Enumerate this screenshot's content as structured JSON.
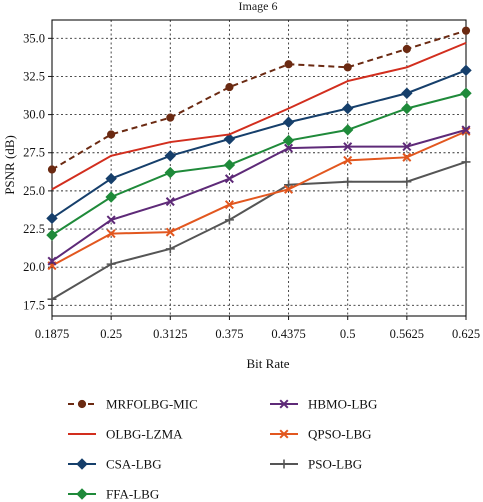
{
  "chart_data": {
    "type": "line",
    "title": "Image 6",
    "xlabel": "Bit Rate",
    "ylabel": "PSNR (dB)",
    "categories": [
      "0.1875",
      "0.25",
      "0.3125",
      "0.375",
      "0.4375",
      "0.5",
      "0.5625",
      "0.625"
    ],
    "ylim": [
      16.8,
      36.2
    ],
    "yticks": [
      "17.5",
      "20.0",
      "22.5",
      "25.0",
      "27.5",
      "30.0",
      "32.5",
      "35.0"
    ],
    "grid": true,
    "legend_position": "bottom",
    "series": [
      {
        "name": "MRFOLBG-MIC",
        "color": "#6b2a12",
        "dashed": true,
        "marker": "circle",
        "values": [
          26.4,
          28.7,
          29.8,
          31.8,
          33.3,
          33.1,
          34.3,
          35.5
        ]
      },
      {
        "name": "OLBG-LZMA",
        "color": "#d22e1e",
        "dashed": false,
        "marker": "none",
        "values": [
          25.1,
          27.3,
          28.2,
          28.7,
          30.4,
          32.2,
          33.1,
          34.7
        ]
      },
      {
        "name": "CSA-LBG",
        "color": "#163f6b",
        "dashed": false,
        "marker": "diamond",
        "values": [
          23.2,
          25.8,
          27.3,
          28.4,
          29.5,
          30.4,
          31.4,
          32.9
        ]
      },
      {
        "name": "FFA-LBG",
        "color": "#1f8a3a",
        "dashed": false,
        "marker": "diamond",
        "values": [
          22.1,
          24.6,
          26.2,
          26.7,
          28.3,
          29.0,
          30.4,
          31.4
        ]
      },
      {
        "name": "HBMO-LBG",
        "color": "#5e2a78",
        "dashed": false,
        "marker": "x",
        "values": [
          20.4,
          23.1,
          24.3,
          25.8,
          27.8,
          27.9,
          27.9,
          29.0
        ]
      },
      {
        "name": "QPSO-LBG",
        "color": "#e2571f",
        "dashed": false,
        "marker": "x",
        "values": [
          20.1,
          22.2,
          22.3,
          24.1,
          25.1,
          27.0,
          27.2,
          28.9
        ]
      },
      {
        "name": "PSO-LBG",
        "color": "#555555",
        "dashed": false,
        "marker": "plus",
        "values": [
          17.9,
          20.2,
          21.2,
          23.1,
          25.4,
          25.6,
          25.6,
          26.9
        ]
      }
    ]
  }
}
